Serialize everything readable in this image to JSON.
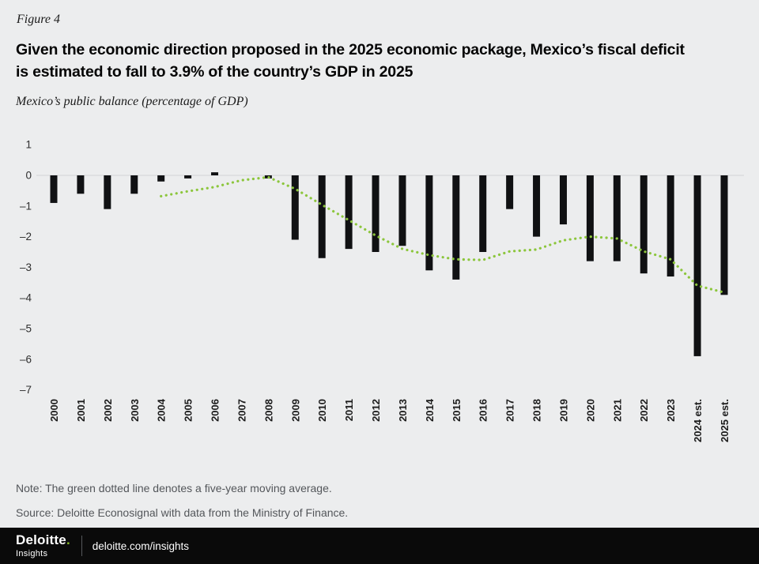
{
  "figure_label": "Figure 4",
  "title_lines": [
    "Given the economic direction proposed in the 2025 economic package, Mexico’s fiscal deficit",
    "is estimated to fall to 3.9% of the country’s GDP in 2025"
  ],
  "subtitle": "Mexico’s public balance (percentage of GDP)",
  "note": "Note: The green dotted line denotes a five-year moving average.",
  "source": "Source: Deloitte Econosignal with data from the Ministry of Finance.",
  "footer": {
    "brand": "Deloitte",
    "brand_dot": ".",
    "brand_sub": "Insights",
    "link": "deloitte.com/insights",
    "accent_color": "#86BC25"
  },
  "chart_data": {
    "type": "bar",
    "title": "Mexico’s public balance (percentage of GDP)",
    "xlabel": "",
    "ylabel": "",
    "ylim": [
      -7,
      1
    ],
    "yticks": [
      1,
      0,
      -1,
      -2,
      -3,
      -4,
      -5,
      -6,
      -7
    ],
    "ytick_labels": [
      "1",
      "0",
      "–1",
      "–2",
      "–3",
      "–4",
      "–5",
      "–6",
      "–7"
    ],
    "grid": "zero-line-only",
    "legend": "none",
    "categories": [
      "2000",
      "2001",
      "2002",
      "2003",
      "2004",
      "2005",
      "2006",
      "2007",
      "2008",
      "2009",
      "2010",
      "2011",
      "2012",
      "2013",
      "2014",
      "2015",
      "2016",
      "2017",
      "2018",
      "2019",
      "2020",
      "2021",
      "2022",
      "2023",
      "2024 est.",
      "2025 est."
    ],
    "series": [
      {
        "name": "Public balance (% of GDP)",
        "type": "bar",
        "color": "#101113",
        "values": [
          -0.9,
          -0.6,
          -1.1,
          -0.6,
          -0.2,
          -0.1,
          0.1,
          0.0,
          -0.1,
          -2.1,
          -2.7,
          -2.4,
          -2.5,
          -2.3,
          -3.1,
          -3.4,
          -2.5,
          -1.1,
          -2.0,
          -1.6,
          -2.8,
          -2.8,
          -3.2,
          -3.3,
          -5.9,
          -3.9
        ]
      },
      {
        "name": "Five-year moving average",
        "type": "dotted-line",
        "color": "#8CC63C",
        "values": [
          null,
          null,
          null,
          null,
          -0.68,
          -0.52,
          -0.38,
          -0.16,
          -0.06,
          -0.44,
          -0.96,
          -1.46,
          -1.96,
          -2.4,
          -2.6,
          -2.74,
          -2.76,
          -2.48,
          -2.42,
          -2.12,
          -2.0,
          -2.06,
          -2.48,
          -2.74,
          -3.6,
          -3.82
        ]
      }
    ]
  }
}
